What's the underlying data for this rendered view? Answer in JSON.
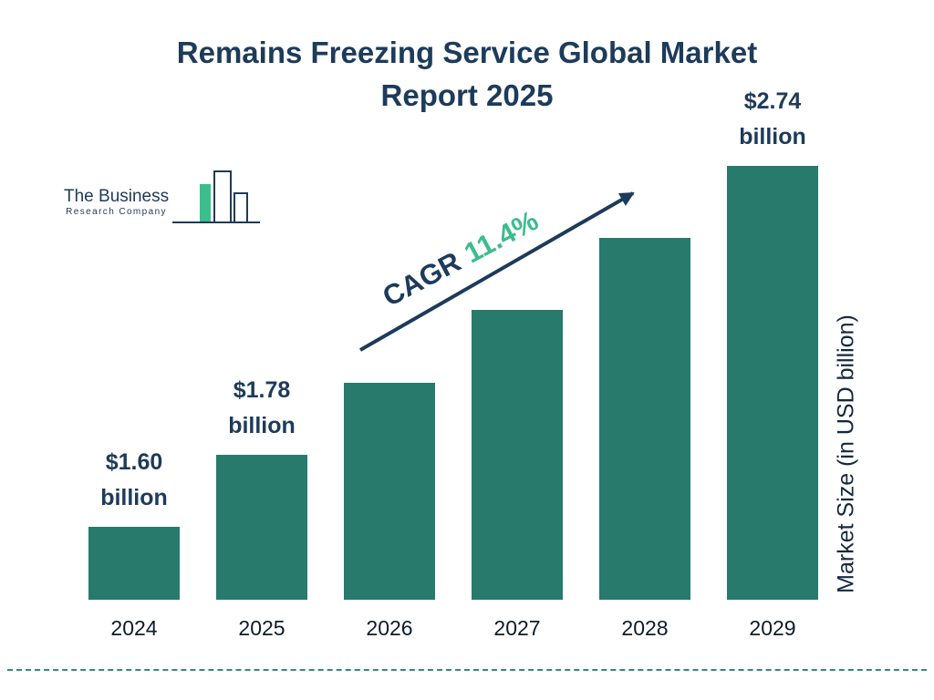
{
  "title_lines": [
    "Remains Freezing Service Global Market",
    "Report 2025"
  ],
  "logo": {
    "name_line1": "The Business",
    "name_line2": "Research Company"
  },
  "cagr": {
    "label": "CAGR",
    "value": "11.4%"
  },
  "y_axis_label": "Market Size (in USD billion)",
  "colors": {
    "navy": "#1d3b5a",
    "teal_bar": "#277a6c",
    "green_accent": "#3bbd8e",
    "dashed_line": "#2a8f7d"
  },
  "chart_data": {
    "type": "bar",
    "title": "Remains Freezing Service Global Market Report 2025",
    "xlabel": "",
    "ylabel": "Market Size (in USD billion)",
    "categories": [
      "2024",
      "2025",
      "2026",
      "2027",
      "2028",
      "2029"
    ],
    "values": [
      1.6,
      1.78,
      1.98,
      2.21,
      2.46,
      2.74
    ],
    "value_labels": [
      "$1.60 billion",
      "$1.78 billion",
      null,
      null,
      null,
      "$2.74 billion"
    ],
    "cagr": "11.4%",
    "bar_color": "#277a6c",
    "grid": false,
    "legend": false,
    "y_axis_ticks_visible": false
  }
}
